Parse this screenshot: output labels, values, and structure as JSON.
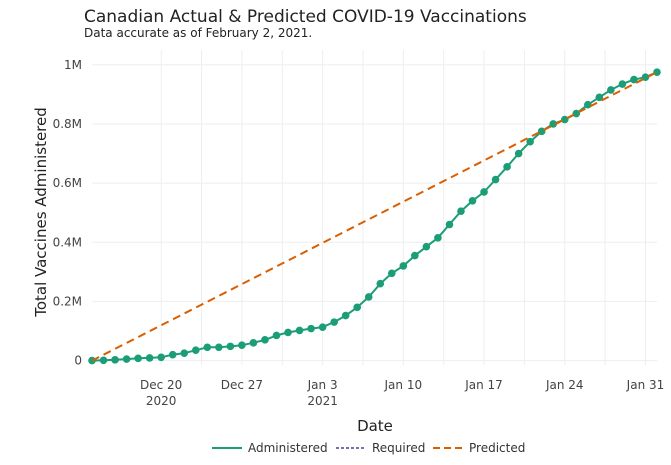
{
  "chart_data": {
    "type": "line",
    "title": "Canadian Actual & Predicted COVID-19 Vaccinations",
    "subtitle": "Data accurate as of February 2, 2021.",
    "xlabel": "Date",
    "ylabel": "Total Vaccines Administered",
    "x_ticks": [
      {
        "date": "2020-12-20",
        "line1": "Dec 20",
        "line2": "2020"
      },
      {
        "date": "2020-12-27",
        "line1": "Dec 27",
        "line2": ""
      },
      {
        "date": "2021-01-03",
        "line1": "Jan 3",
        "line2": "2021"
      },
      {
        "date": "2021-01-10",
        "line1": "Jan 10",
        "line2": ""
      },
      {
        "date": "2021-01-17",
        "line1": "Jan 17",
        "line2": ""
      },
      {
        "date": "2021-01-24",
        "line1": "Jan 24",
        "line2": ""
      },
      {
        "date": "2021-01-31",
        "line1": "Jan 31",
        "line2": ""
      }
    ],
    "y_ticks": [
      {
        "value": 0,
        "label": "0"
      },
      {
        "value": 200000,
        "label": "0.2M"
      },
      {
        "value": 400000,
        "label": "0.4M"
      },
      {
        "value": 600000,
        "label": "0.6M"
      },
      {
        "value": 800000,
        "label": "0.8M"
      },
      {
        "value": 1000000,
        "label": "1M"
      }
    ],
    "xlim": [
      "2020-12-14",
      "2021-02-01"
    ],
    "ylim": [
      -15000,
      1050000
    ],
    "grid": true,
    "legend_position": "bottom",
    "series": [
      {
        "name": "Administered",
        "style": "solid-markers",
        "color": "#1b9e77",
        "x": [
          "2020-12-14",
          "2020-12-15",
          "2020-12-16",
          "2020-12-17",
          "2020-12-18",
          "2020-12-19",
          "2020-12-20",
          "2020-12-21",
          "2020-12-22",
          "2020-12-23",
          "2020-12-24",
          "2020-12-25",
          "2020-12-26",
          "2020-12-27",
          "2020-12-28",
          "2020-12-29",
          "2020-12-30",
          "2020-12-31",
          "2021-01-01",
          "2021-01-02",
          "2021-01-03",
          "2021-01-04",
          "2021-01-05",
          "2021-01-06",
          "2021-01-07",
          "2021-01-08",
          "2021-01-09",
          "2021-01-10",
          "2021-01-11",
          "2021-01-12",
          "2021-01-13",
          "2021-01-14",
          "2021-01-15",
          "2021-01-16",
          "2021-01-17",
          "2021-01-18",
          "2021-01-19",
          "2021-01-20",
          "2021-01-21",
          "2021-01-22",
          "2021-01-23",
          "2021-01-24",
          "2021-01-25",
          "2021-01-26",
          "2021-01-27",
          "2021-01-28",
          "2021-01-29",
          "2021-01-30",
          "2021-01-31",
          "2021-02-01"
        ],
        "y": [
          0,
          1000,
          2500,
          5000,
          7500,
          9000,
          11000,
          20000,
          25000,
          35000,
          45000,
          45000,
          48000,
          52000,
          60000,
          70000,
          85000,
          95000,
          102000,
          108000,
          113000,
          130000,
          152000,
          180000,
          215000,
          260000,
          295000,
          320000,
          355000,
          385000,
          415000,
          460000,
          505000,
          540000,
          570000,
          612000,
          655000,
          700000,
          740000,
          775000,
          800000,
          815000,
          835000,
          865000,
          890000,
          915000,
          935000,
          950000,
          958000,
          975000
        ]
      },
      {
        "name": "Required",
        "style": "dotted",
        "color": "#7570b3",
        "x": [],
        "y": []
      },
      {
        "name": "Predicted",
        "style": "dashed",
        "color": "#d95f02",
        "x": [
          "2020-12-14",
          "2021-02-01"
        ],
        "y": [
          0,
          975000
        ]
      }
    ]
  }
}
